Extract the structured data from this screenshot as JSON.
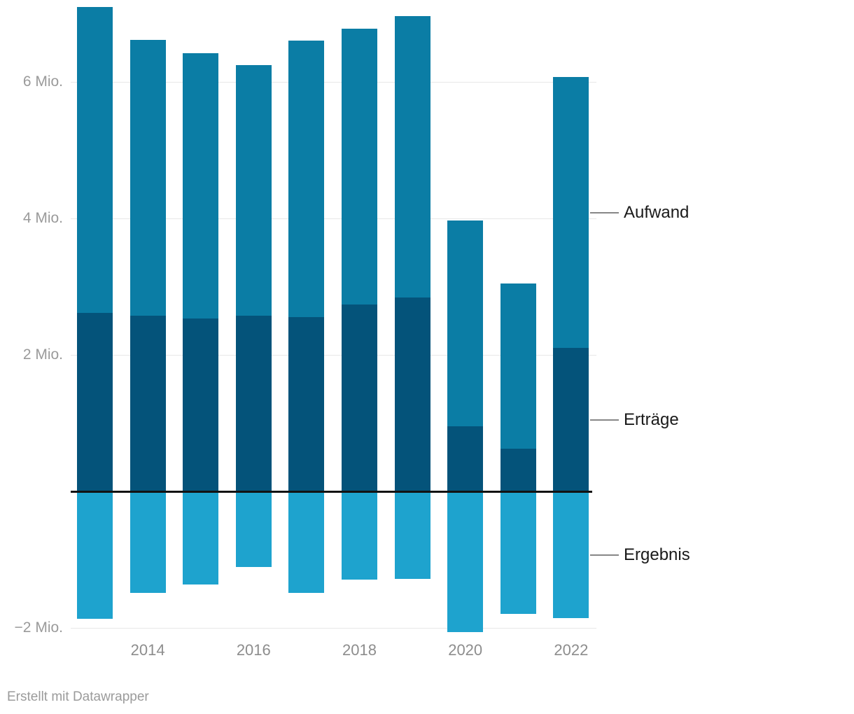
{
  "chart_data": {
    "type": "bar",
    "subtype": "column-chart-with-overlapping-series-and-negative-values",
    "title": "",
    "xlabel": "",
    "ylabel": "",
    "unit": "Mio.",
    "categories": [
      2013,
      2014,
      2015,
      2016,
      2017,
      2018,
      2019,
      2020,
      2021,
      2022
    ],
    "series": [
      {
        "name": "Aufwand",
        "key": "aufwand",
        "color": "#0b7da5",
        "values": [
          7.1,
          6.62,
          6.42,
          6.25,
          6.61,
          6.78,
          6.96,
          3.97,
          3.05,
          6.07
        ]
      },
      {
        "name": "Erträge",
        "key": "ertraege",
        "color": "#04537a",
        "values": [
          2.62,
          2.57,
          2.53,
          2.57,
          2.55,
          2.74,
          2.84,
          0.95,
          0.63,
          2.1
        ]
      },
      {
        "name": "Ergebnis",
        "key": "ergebnis",
        "color": "#1ea3ce",
        "values": [
          -1.87,
          -1.49,
          -1.36,
          -1.11,
          -1.49,
          -1.29,
          -1.28,
          -2.06,
          -1.79,
          -1.86
        ]
      }
    ],
    "x_axis": {
      "ticks": [
        2014,
        2016,
        2018,
        2020,
        2022
      ]
    },
    "y_axis": {
      "ticks": [
        {
          "value": 6,
          "label": "6 Mio."
        },
        {
          "value": 4,
          "label": "4 Mio."
        },
        {
          "value": 2,
          "label": "2 Mio."
        },
        {
          "value": -2,
          "label": "−2 Mio."
        }
      ],
      "range": [
        -2.2,
        7.2
      ],
      "zero_line": true,
      "grid": true
    },
    "legend": {
      "position": "right",
      "entries": [
        "Aufwand",
        "Erträge",
        "Ergebnis"
      ]
    }
  },
  "footer": {
    "credit": "Erstellt mit Datawrapper"
  },
  "colors": {
    "aufwand": "#0b7da5",
    "ertraege": "#04537a",
    "ergebnis": "#1ea3ce",
    "gridline": "#e8e8e8",
    "zero_line": "#121212",
    "axis_text": "#9a9a9a",
    "x_axis_text": "#8d8d8d",
    "legend_text": "#1a1a1a",
    "legend_line": "#878787",
    "credit_text": "#9b9b9b"
  }
}
